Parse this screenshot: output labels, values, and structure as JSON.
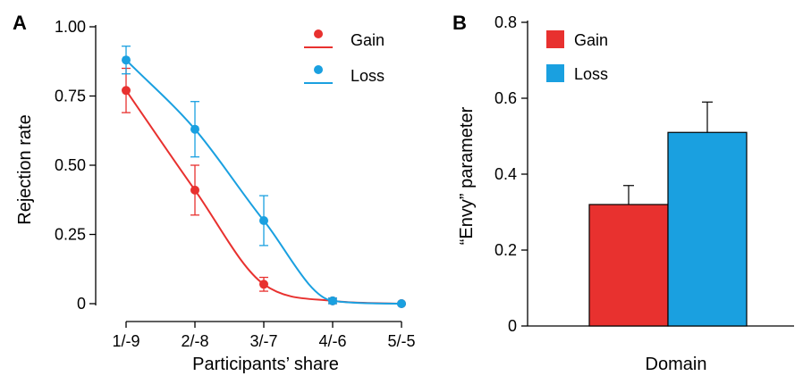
{
  "chart_data": [
    {
      "panel": "A",
      "type": "line",
      "xlabel": "Participants’ share",
      "ylabel": "Rejection rate",
      "categories": [
        "1/-9",
        "2/-8",
        "3/-7",
        "4/-6",
        "5/-5"
      ],
      "ylim": [
        0,
        1
      ],
      "yticks": [
        "0",
        "0.25",
        "0.50",
        "0.75",
        "1.00"
      ],
      "ytick_values": [
        0,
        0.25,
        0.5,
        0.75,
        1.0
      ],
      "legend_position": "top-right",
      "series": [
        {
          "name": "Gain",
          "color": "#e8312f",
          "values": [
            0.77,
            0.41,
            0.07,
            0.01,
            0.0
          ],
          "errors": [
            0.08,
            0.09,
            0.025,
            0.01,
            0.005
          ],
          "fit_curve": true
        },
        {
          "name": "Loss",
          "color": "#1aa0e0",
          "values": [
            0.88,
            0.63,
            0.3,
            0.01,
            0.0
          ],
          "errors": [
            0.05,
            0.1,
            0.09,
            0.01,
            0.005
          ],
          "fit_curve": true
        }
      ]
    },
    {
      "panel": "B",
      "type": "bar",
      "xlabel": "Domain",
      "ylabel": "“Envy” parameter",
      "ylim": [
        0,
        0.8
      ],
      "yticks": [
        "0",
        "0.2",
        "0.4",
        "0.6",
        "0.8"
      ],
      "ytick_values": [
        0,
        0.2,
        0.4,
        0.6,
        0.8
      ],
      "legend_position": "top-left",
      "series": [
        {
          "name": "Gain",
          "color": "#e8312f",
          "value": 0.32,
          "error": 0.05
        },
        {
          "name": "Loss",
          "color": "#1aa0e0",
          "value": 0.51,
          "error": 0.08
        }
      ]
    }
  ]
}
